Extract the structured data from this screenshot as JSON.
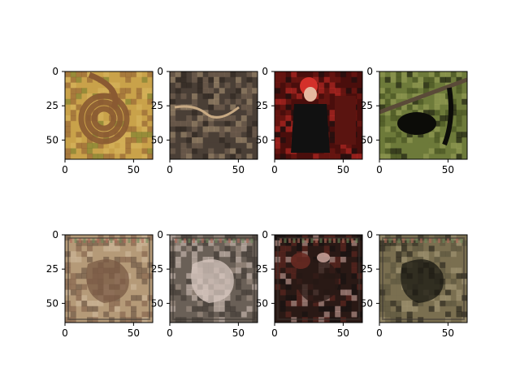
{
  "figure": {
    "background": "#ffffff",
    "axis_color": "#000000"
  },
  "chart_data": {
    "type": "image_grid",
    "rows": 2,
    "cols": 4,
    "image_size": [
      64,
      64
    ],
    "xlim": [
      0,
      64
    ],
    "ylim": [
      64,
      0
    ],
    "xticks": [
      0,
      50
    ],
    "yticks": [
      0,
      25,
      50
    ],
    "panels": [
      {
        "row": 0,
        "col": 0,
        "content": "brown snake coiled on yellow-green leaves",
        "palette": [
          "#c9a24a",
          "#8a5a32",
          "#6e7a2c",
          "#d8b860"
        ]
      },
      {
        "row": 0,
        "col": 1,
        "content": "thin worm-like snake on dark gravel soil",
        "palette": [
          "#4a3f36",
          "#7d6a58",
          "#2a231e",
          "#b39a7a"
        ]
      },
      {
        "row": 0,
        "col": 2,
        "content": "woman with red hair and black dress against dark red door",
        "palette": [
          "#4a0f0c",
          "#7a1a14",
          "#111111",
          "#d4302a"
        ]
      },
      {
        "row": 0,
        "col": 3,
        "content": "black monkey with long tail on branch",
        "palette": [
          "#6e7a3a",
          "#3f4a1e",
          "#0c0c08",
          "#9aa35a"
        ]
      },
      {
        "row": 1,
        "col": 0,
        "content": "generated reconstruction, noisy tan texture",
        "palette": [
          "#b59a78",
          "#7a5a44",
          "#d2bea0",
          "#5e4a3a"
        ]
      },
      {
        "row": 1,
        "col": 1,
        "content": "generated reconstruction, noisy dark texture",
        "palette": [
          "#6a6058",
          "#3a3430",
          "#a8988a",
          "#d8c8c0"
        ]
      },
      {
        "row": 1,
        "col": 2,
        "content": "generated reconstruction, dark with red and pink blobs",
        "palette": [
          "#2a1a16",
          "#6a2a22",
          "#d8b0a8",
          "#121010"
        ]
      },
      {
        "row": 1,
        "col": 3,
        "content": "generated reconstruction, olive with dark blob",
        "palette": [
          "#7a7050",
          "#56503a",
          "#a89a78",
          "#1a1812"
        ]
      }
    ]
  }
}
